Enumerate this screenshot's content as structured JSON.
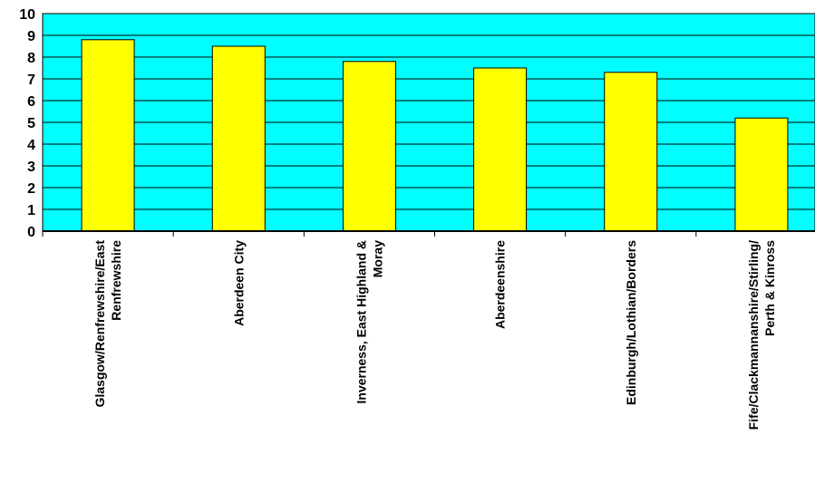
{
  "chart_data": {
    "type": "bar",
    "categories": [
      "Glasgow/Renfrewshire/East Renfrewshire",
      "Aberdeen City",
      "Inverness, East Highland & Moray",
      "Aberdeenshire",
      "Edinburgh/Lothian/Borders",
      "Fife/Clackmannanshire/Stirling/ Perth & Kinross"
    ],
    "category_label_lines": [
      [
        "Glasgow/Renfrewshire/East",
        "Renfrewshire"
      ],
      [
        "Aberdeen City"
      ],
      [
        "Inverness, East Highland &",
        "Moray"
      ],
      [
        "Aberdeenshire"
      ],
      [
        "Edinburgh/Lothian/Borders"
      ],
      [
        "Fife/Clackmannanshire/Stirling/",
        "Perth & Kinross"
      ]
    ],
    "values": [
      8.8,
      8.5,
      7.8,
      7.5,
      7.3,
      5.2
    ],
    "ylim": [
      0,
      10
    ],
    "yticks": [
      0,
      1,
      2,
      3,
      4,
      5,
      6,
      7,
      8,
      9,
      10
    ],
    "title": "",
    "xlabel": "",
    "ylabel": "",
    "grid": true,
    "legend": "none",
    "colors": {
      "plot_background": "#00ffff",
      "bar_fill": "#ffff00",
      "bar_stroke": "#000000",
      "gridline": "#000000"
    }
  }
}
